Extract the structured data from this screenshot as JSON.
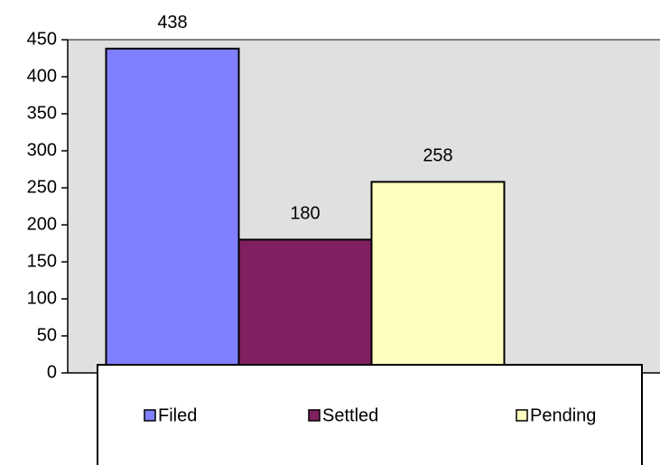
{
  "chart_data": {
    "type": "bar",
    "categories": [
      null
    ],
    "series": [
      {
        "name": "Filed",
        "color": "#8080ff",
        "values": [
          438
        ]
      },
      {
        "name": "Settled",
        "color": "#802060",
        "values": [
          180
        ]
      },
      {
        "name": "Pending",
        "color": "#ffffc0",
        "values": [
          258
        ]
      }
    ],
    "ylim": [
      0,
      450
    ],
    "yticks": [
      0,
      50,
      100,
      150,
      200,
      250,
      300,
      350,
      400,
      450
    ],
    "legend": "bottom"
  }
}
